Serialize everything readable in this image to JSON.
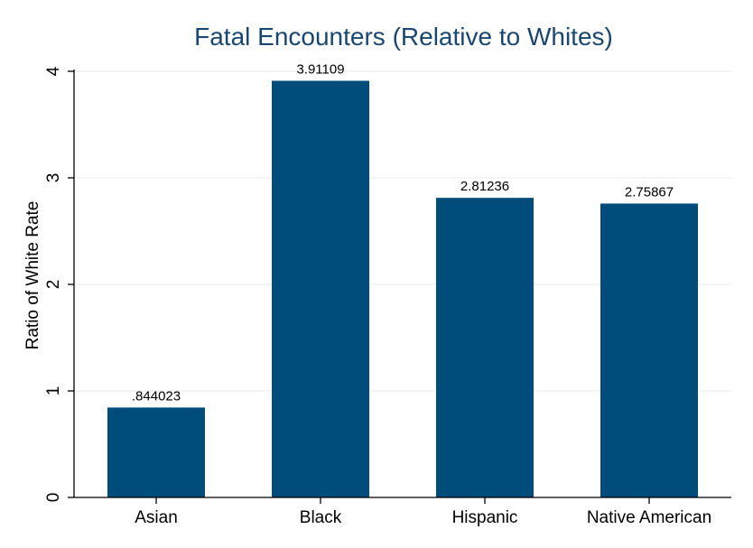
{
  "chart_data": {
    "type": "bar",
    "title": "Fatal Encounters (Relative to Whites)",
    "xlabel": "",
    "ylabel": "Ratio of White Rate",
    "categories": [
      "Asian",
      "Black",
      "Hispanic",
      "Native American"
    ],
    "values": [
      0.844023,
      3.91109,
      2.81236,
      2.75867
    ],
    "value_labels": [
      ".844023",
      "3.91109",
      "2.81236",
      "2.75867"
    ],
    "ylim": [
      0,
      4
    ],
    "yticks": [
      0,
      1,
      2,
      3,
      4
    ],
    "ytick_labels": [
      "0",
      "1",
      "2",
      "3",
      "4"
    ],
    "grid": true,
    "legend": "none",
    "colors": {
      "bar": "#004c7a",
      "title": "#1a476f",
      "grid": "#eaeaea",
      "axis": "#000000"
    }
  }
}
